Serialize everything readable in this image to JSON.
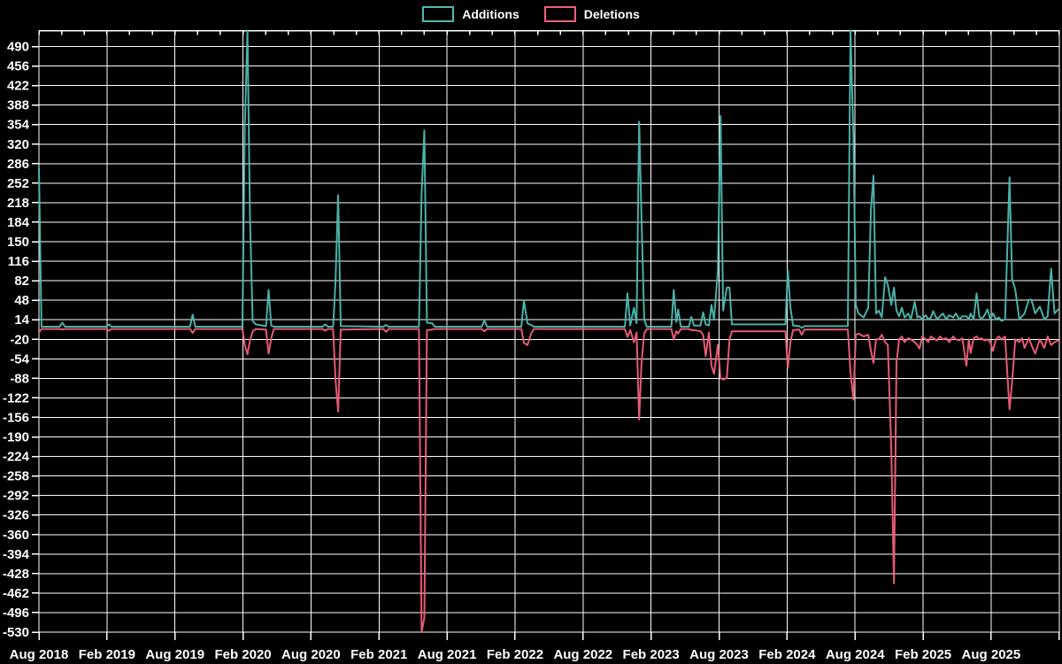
{
  "chart_data": {
    "type": "line",
    "title": "",
    "background_color": "#000000",
    "grid_color": "#ffffff",
    "text_color": "#ffffff",
    "legend": [
      {
        "label": "Additions",
        "color": "#4db9b0"
      },
      {
        "label": "Deletions",
        "color": "#f15f7a"
      }
    ],
    "y_axis": {
      "ticks": [
        490,
        456,
        422,
        388,
        354,
        320,
        286,
        252,
        218,
        184,
        150,
        116,
        82,
        48,
        14,
        -20,
        -54,
        -88,
        -122,
        -156,
        -190,
        -224,
        -258,
        -292,
        -326,
        -360,
        -394,
        -428,
        -462,
        -496,
        -530
      ],
      "min": -530,
      "max": 518
    },
    "x_axis": {
      "tick_labels": [
        "Aug 2018",
        "Feb 2019",
        "Aug 2019",
        "Feb 2020",
        "Aug 2020",
        "Feb 2021",
        "Aug 2021",
        "Feb 2022",
        "Aug 2022",
        "Feb 2023",
        "Aug 2023",
        "Feb 2024",
        "Aug 2024",
        "Feb 2025",
        "Aug 2025"
      ],
      "start_month": "2018-08",
      "gridline_interval_months": 6,
      "minor_tick_interval_months": 2,
      "num_gridlines": 16
    },
    "series_format": "each week entry is [approx_date, additions, deletions]",
    "weeks": [
      [
        "2018-08-01",
        278,
        -8
      ],
      [
        "2018-08-08",
        2,
        -2
      ],
      [
        "2018-09-26",
        2,
        -2
      ],
      [
        "2018-10-03",
        9,
        -3
      ],
      [
        "2018-10-10",
        2,
        -2
      ],
      [
        "2019-01-30",
        2,
        -2
      ],
      [
        "2019-02-06",
        6,
        -5
      ],
      [
        "2019-02-13",
        2,
        -2
      ],
      [
        "2019-09-11",
        2,
        -2
      ],
      [
        "2019-09-18",
        23,
        -9
      ],
      [
        "2019-09-25",
        2,
        -2
      ],
      [
        "2020-01-30",
        2,
        -2
      ],
      [
        "2020-02-06",
        356,
        -30
      ],
      [
        "2020-02-13",
        520,
        -46
      ],
      [
        "2020-02-20",
        190,
        -22
      ],
      [
        "2020-02-27",
        12,
        -6
      ],
      [
        "2020-03-05",
        6,
        -2
      ],
      [
        "2020-04-02",
        3,
        -3
      ],
      [
        "2020-04-09",
        66,
        -45
      ],
      [
        "2020-04-16",
        4,
        -18
      ],
      [
        "2020-04-23",
        2,
        -2
      ],
      [
        "2020-09-02",
        2,
        -2
      ],
      [
        "2020-09-09",
        6,
        -5
      ],
      [
        "2020-09-16",
        2,
        -2
      ],
      [
        "2020-09-30",
        2,
        -2
      ],
      [
        "2020-10-06",
        80,
        -90
      ],
      [
        "2020-10-13",
        231,
        -146
      ],
      [
        "2020-10-20",
        3,
        -3
      ],
      [
        "2021-02-13",
        2,
        -2
      ],
      [
        "2021-02-20",
        5,
        -7
      ],
      [
        "2021-02-27",
        2,
        -2
      ],
      [
        "2021-05-17",
        2,
        -2
      ],
      [
        "2021-05-24",
        235,
        -530
      ],
      [
        "2021-06-01",
        344,
        -505
      ],
      [
        "2021-06-08",
        9,
        -4
      ],
      [
        "2021-06-22",
        8,
        -3
      ],
      [
        "2021-06-29",
        2,
        -2
      ],
      [
        "2021-11-03",
        2,
        -2
      ],
      [
        "2021-11-10",
        13,
        -6
      ],
      [
        "2021-11-17",
        2,
        -2
      ],
      [
        "2022-02-18",
        2,
        -2
      ],
      [
        "2022-02-25",
        48,
        -26
      ],
      [
        "2022-03-04",
        8,
        -30
      ],
      [
        "2022-03-14",
        5,
        -10
      ],
      [
        "2022-03-21",
        2,
        -2
      ],
      [
        "2022-11-22",
        2,
        -2
      ],
      [
        "2022-11-29",
        60,
        -16
      ],
      [
        "2022-12-06",
        4,
        -4
      ],
      [
        "2022-12-16",
        35,
        -25
      ],
      [
        "2022-12-23",
        8,
        -8
      ],
      [
        "2022-12-30",
        359,
        -160
      ],
      [
        "2023-01-06",
        190,
        -60
      ],
      [
        "2023-01-13",
        15,
        -10
      ],
      [
        "2023-01-20",
        2,
        -2
      ],
      [
        "2023-03-25",
        2,
        -2
      ],
      [
        "2023-04-01",
        66,
        -20
      ],
      [
        "2023-04-08",
        10,
        -6
      ],
      [
        "2023-04-13",
        32,
        -10
      ],
      [
        "2023-04-20",
        2,
        -2
      ],
      [
        "2023-05-11",
        2,
        -2
      ],
      [
        "2023-05-18",
        19,
        -4
      ],
      [
        "2023-05-25",
        4,
        -4
      ],
      [
        "2023-06-12",
        4,
        -6
      ],
      [
        "2023-06-19",
        27,
        -12
      ],
      [
        "2023-06-26",
        6,
        -49
      ],
      [
        "2023-07-04",
        4,
        -8
      ],
      [
        "2023-07-11",
        40,
        -66
      ],
      [
        "2023-07-18",
        14,
        -80
      ],
      [
        "2023-07-28",
        98,
        -30
      ],
      [
        "2023-08-05",
        369,
        -87
      ],
      [
        "2023-08-12",
        30,
        -90
      ],
      [
        "2023-08-22",
        70,
        -87
      ],
      [
        "2023-08-29",
        70,
        -20
      ],
      [
        "2023-09-05",
        6,
        -6
      ],
      [
        "2024-01-27",
        6,
        -6
      ],
      [
        "2024-02-03",
        100,
        -70
      ],
      [
        "2024-02-10",
        36,
        -25
      ],
      [
        "2024-02-17",
        4,
        -4
      ],
      [
        "2024-03-03",
        3,
        -3
      ],
      [
        "2024-03-10",
        0,
        -12
      ],
      [
        "2024-03-17",
        3,
        -3
      ],
      [
        "2024-07-12",
        3,
        -3
      ],
      [
        "2024-07-19",
        520,
        -77
      ],
      [
        "2024-07-27",
        335,
        -125
      ],
      [
        "2024-08-03",
        40,
        -12
      ],
      [
        "2024-08-10",
        25,
        -10
      ],
      [
        "2024-08-24",
        18,
        -15
      ],
      [
        "2024-09-06",
        35,
        -12
      ],
      [
        "2024-09-13",
        206,
        -40
      ],
      [
        "2024-09-20",
        265,
        -61
      ],
      [
        "2024-09-27",
        25,
        -20
      ],
      [
        "2024-10-04",
        30,
        -20
      ],
      [
        "2024-10-12",
        18,
        -12
      ],
      [
        "2024-10-21",
        88,
        -25
      ],
      [
        "2024-10-28",
        75,
        -30
      ],
      [
        "2024-11-07",
        40,
        -210
      ],
      [
        "2024-11-14",
        70,
        -445
      ],
      [
        "2024-11-21",
        30,
        -60
      ],
      [
        "2024-11-28",
        20,
        -20
      ],
      [
        "2024-12-05",
        35,
        -15
      ],
      [
        "2024-12-12",
        18,
        -25
      ],
      [
        "2024-12-22",
        25,
        -18
      ],
      [
        "2024-12-29",
        15,
        -20
      ],
      [
        "2025-01-09",
        45,
        -25
      ],
      [
        "2025-01-16",
        18,
        -30
      ],
      [
        "2025-01-22",
        20,
        -36
      ],
      [
        "2025-01-29",
        15,
        -15
      ],
      [
        "2025-02-08",
        22,
        -20
      ],
      [
        "2025-02-15",
        15,
        -25
      ],
      [
        "2025-02-22",
        18,
        -15
      ],
      [
        "2025-02-28",
        29,
        -18
      ],
      [
        "2025-03-08",
        15,
        -22
      ],
      [
        "2025-03-16",
        20,
        -15
      ],
      [
        "2025-03-24",
        25,
        -20
      ],
      [
        "2025-04-02",
        15,
        -18
      ],
      [
        "2025-04-10",
        22,
        -25
      ],
      [
        "2025-04-21",
        18,
        -15
      ],
      [
        "2025-04-28",
        25,
        -20
      ],
      [
        "2025-05-07",
        15,
        -22
      ],
      [
        "2025-05-15",
        20,
        -18
      ],
      [
        "2025-05-26",
        20,
        -66
      ],
      [
        "2025-06-02",
        15,
        -20
      ],
      [
        "2025-06-07",
        25,
        -44
      ],
      [
        "2025-06-15",
        15,
        -18
      ],
      [
        "2025-06-23",
        60,
        -15
      ],
      [
        "2025-06-30",
        20,
        -20
      ],
      [
        "2025-07-05",
        15,
        -18
      ],
      [
        "2025-07-14",
        22,
        -22
      ],
      [
        "2025-07-22",
        32,
        -20
      ],
      [
        "2025-07-29",
        15,
        -25
      ],
      [
        "2025-08-06",
        25,
        -40
      ],
      [
        "2025-08-14",
        15,
        -20
      ],
      [
        "2025-08-22",
        18,
        -15
      ],
      [
        "2025-08-29",
        12,
        -20
      ],
      [
        "2025-09-08",
        15,
        -15
      ],
      [
        "2025-09-20",
        262,
        -142
      ],
      [
        "2025-09-27",
        85,
        -95
      ],
      [
        "2025-10-05",
        67,
        -20
      ],
      [
        "2025-10-16",
        15,
        -25
      ],
      [
        "2025-10-23",
        20,
        -18
      ],
      [
        "2025-10-30",
        25,
        -35
      ],
      [
        "2025-11-11",
        49,
        -18
      ],
      [
        "2025-11-18",
        49,
        -30
      ],
      [
        "2025-11-28",
        25,
        -45
      ],
      [
        "2025-12-10",
        37,
        -20
      ],
      [
        "2025-12-22",
        15,
        -35
      ],
      [
        "2025-12-31",
        20,
        -15
      ],
      [
        "2026-01-10",
        103,
        -30
      ],
      [
        "2026-01-19",
        25,
        -25
      ],
      [
        "2026-01-29",
        32,
        -22
      ]
    ]
  }
}
